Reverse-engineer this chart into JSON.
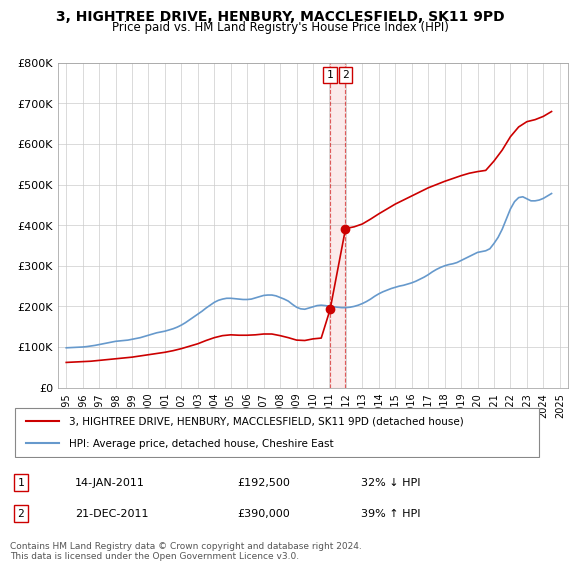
{
  "title": "3, HIGHTREE DRIVE, HENBURY, MACCLESFIELD, SK11 9PD",
  "subtitle": "Price paid vs. HM Land Registry's House Price Index (HPI)",
  "ylabel": "",
  "ylim": [
    0,
    800000
  ],
  "yticks": [
    0,
    100000,
    200000,
    300000,
    400000,
    500000,
    600000,
    700000,
    800000
  ],
  "ytick_labels": [
    "£0",
    "£100K",
    "£200K",
    "£300K",
    "£400K",
    "£500K",
    "£600K",
    "£700K",
    "£800K"
  ],
  "xlim_start": 1994.5,
  "xlim_end": 2025.5,
  "transaction1": {
    "date": "14-JAN-2011",
    "price": 192500,
    "pct": "32% ↓ HPI",
    "year": 2011.04,
    "label": "1"
  },
  "transaction2": {
    "date": "21-DEC-2011",
    "price": 390000,
    "pct": "39% ↑ HPI",
    "year": 2011.97,
    "label": "2"
  },
  "legend_line1": "3, HIGHTREE DRIVE, HENBURY, MACCLESFIELD, SK11 9PD (detached house)",
  "legend_line2": "HPI: Average price, detached house, Cheshire East",
  "footer": "Contains HM Land Registry data © Crown copyright and database right 2024.\nThis data is licensed under the Open Government Licence v3.0.",
  "line_color_red": "#cc0000",
  "line_color_blue": "#6699cc",
  "hpi_years": [
    1995,
    1995.25,
    1995.5,
    1995.75,
    1996,
    1996.25,
    1996.5,
    1996.75,
    1997,
    1997.25,
    1997.5,
    1997.75,
    1998,
    1998.25,
    1998.5,
    1998.75,
    1999,
    1999.25,
    1999.5,
    1999.75,
    2000,
    2000.25,
    2000.5,
    2000.75,
    2001,
    2001.25,
    2001.5,
    2001.75,
    2002,
    2002.25,
    2002.5,
    2002.75,
    2003,
    2003.25,
    2003.5,
    2003.75,
    2004,
    2004.25,
    2004.5,
    2004.75,
    2005,
    2005.25,
    2005.5,
    2005.75,
    2006,
    2006.25,
    2006.5,
    2006.75,
    2007,
    2007.25,
    2007.5,
    2007.75,
    2008,
    2008.25,
    2008.5,
    2008.75,
    2009,
    2009.25,
    2009.5,
    2009.75,
    2010,
    2010.25,
    2010.5,
    2010.75,
    2011,
    2011.25,
    2011.5,
    2011.75,
    2012,
    2012.25,
    2012.5,
    2012.75,
    2013,
    2013.25,
    2013.5,
    2013.75,
    2014,
    2014.25,
    2014.5,
    2014.75,
    2015,
    2015.25,
    2015.5,
    2015.75,
    2016,
    2016.25,
    2016.5,
    2016.75,
    2017,
    2017.25,
    2017.5,
    2017.75,
    2018,
    2018.25,
    2018.5,
    2018.75,
    2019,
    2019.25,
    2019.5,
    2019.75,
    2020,
    2020.25,
    2020.5,
    2020.75,
    2021,
    2021.25,
    2021.5,
    2021.75,
    2022,
    2022.25,
    2022.5,
    2022.75,
    2023,
    2023.25,
    2023.5,
    2023.75,
    2024,
    2024.25,
    2024.5
  ],
  "hpi_values": [
    98000,
    98500,
    99000,
    99500,
    100000,
    101000,
    102500,
    104000,
    106000,
    108000,
    110000,
    112000,
    114000,
    115000,
    116000,
    117000,
    119000,
    121000,
    123000,
    126000,
    129000,
    132000,
    135000,
    137000,
    139000,
    142000,
    145000,
    149000,
    154000,
    160000,
    167000,
    174000,
    181000,
    188000,
    196000,
    203000,
    210000,
    215000,
    218000,
    220000,
    220000,
    219000,
    218000,
    217000,
    217000,
    218000,
    221000,
    224000,
    227000,
    228000,
    228000,
    226000,
    222000,
    218000,
    213000,
    205000,
    198000,
    194000,
    193000,
    196000,
    199000,
    202000,
    203000,
    202000,
    200000,
    199000,
    198000,
    197000,
    197000,
    198000,
    200000,
    203000,
    207000,
    212000,
    218000,
    225000,
    231000,
    236000,
    240000,
    244000,
    247000,
    250000,
    252000,
    255000,
    258000,
    262000,
    267000,
    272000,
    278000,
    285000,
    291000,
    296000,
    300000,
    303000,
    305000,
    308000,
    313000,
    318000,
    323000,
    328000,
    333000,
    335000,
    337000,
    342000,
    355000,
    370000,
    390000,
    415000,
    440000,
    458000,
    468000,
    470000,
    465000,
    460000,
    460000,
    462000,
    466000,
    472000,
    478000
  ],
  "prop_years": [
    1995,
    1995.5,
    1996,
    1996.5,
    1997,
    1997.5,
    1998,
    1998.5,
    1999,
    1999.5,
    2000,
    2000.5,
    2001,
    2001.5,
    2002,
    2002.5,
    2003,
    2003.5,
    2004,
    2004.5,
    2005,
    2005.5,
    2006,
    2006.5,
    2007,
    2007.5,
    2008,
    2008.5,
    2009,
    2009.5,
    2010,
    2010.5,
    2011.04,
    2011.97,
    2012,
    2012.5,
    2013,
    2013.5,
    2014,
    2014.5,
    2015,
    2015.5,
    2016,
    2016.5,
    2017,
    2017.5,
    2018,
    2018.5,
    2019,
    2019.5,
    2020,
    2020.5,
    2021,
    2021.5,
    2022,
    2022.5,
    2023,
    2023.5,
    2024,
    2024.5
  ],
  "prop_values": [
    62000,
    63000,
    64000,
    65000,
    67000,
    69000,
    71000,
    73000,
    75000,
    78000,
    81000,
    84000,
    87000,
    91000,
    96000,
    102000,
    108000,
    116000,
    123000,
    128000,
    130000,
    129000,
    129000,
    130000,
    132000,
    132000,
    128000,
    123000,
    117000,
    116000,
    120000,
    122000,
    192500,
    390000,
    392000,
    396000,
    403000,
    415000,
    428000,
    440000,
    452000,
    462000,
    472000,
    482000,
    492000,
    500000,
    508000,
    515000,
    522000,
    528000,
    532000,
    535000,
    558000,
    585000,
    618000,
    642000,
    655000,
    660000,
    668000,
    680000
  ]
}
